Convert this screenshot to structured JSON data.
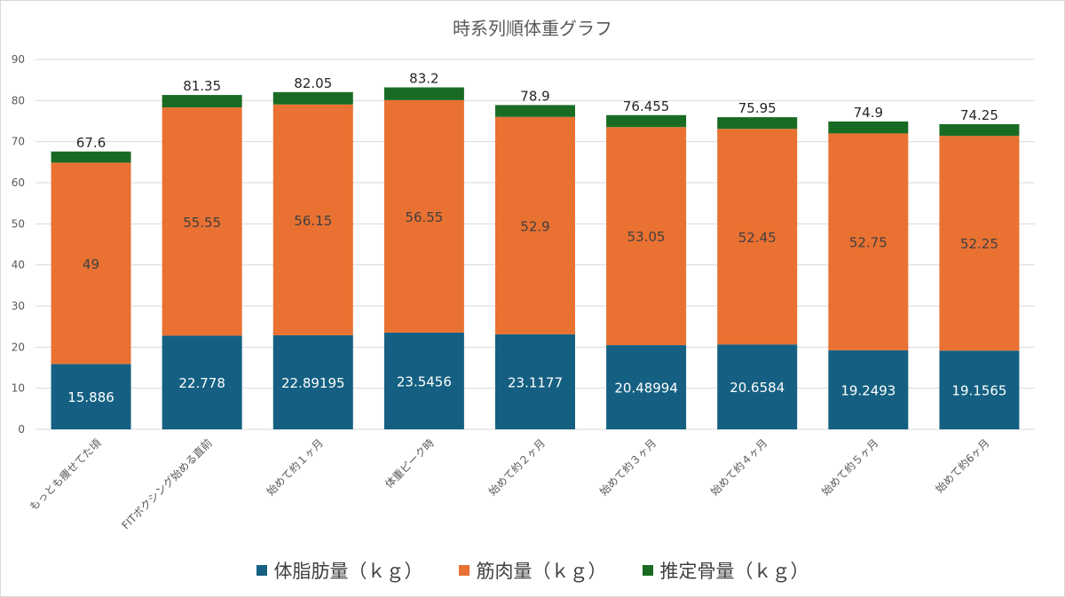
{
  "chart_data": {
    "type": "bar",
    "stacked": true,
    "title": "時系列順体重グラフ",
    "xlabel": "",
    "ylabel": "",
    "ylim": [
      0,
      90
    ],
    "yticks": [
      0,
      10,
      20,
      30,
      40,
      50,
      60,
      70,
      80,
      90
    ],
    "grid": true,
    "legend_position": "bottom",
    "categories": [
      "もっとも痩せてた頃",
      "FITボクシング始める直前",
      "始めて約１ヶ月",
      "体重ピーク時",
      "始めて約２ヶ月",
      "始めて約３ヶ月",
      "始めて約４ヶ月",
      "始めて約５ヶ月",
      "始めて約6ヶ月"
    ],
    "series": [
      {
        "name": "体脂肪量（ｋｇ）",
        "color": "#156082",
        "values": [
          15.886,
          22.778,
          22.89195,
          23.5456,
          23.1177,
          20.48994,
          20.6584,
          19.2493,
          19.1565
        ],
        "labels": [
          "15.886",
          "22.778",
          "22.89195",
          "23.5456",
          "23.1177",
          "20.48994",
          "20.6584",
          "19.2493",
          "19.1565"
        ]
      },
      {
        "name": "筋肉量（ｋｇ）",
        "color": "#E97132",
        "values": [
          49,
          55.55,
          56.15,
          56.55,
          52.9,
          53.05,
          52.45,
          52.75,
          52.25
        ],
        "labels": [
          "49",
          "55.55",
          "56.15",
          "56.55",
          "52.9",
          "53.05",
          "52.45",
          "52.75",
          "52.25"
        ]
      },
      {
        "name": "推定骨量（ｋｇ）",
        "color": "#196B24",
        "values": [
          2.714,
          3.022,
          3.00805,
          3.1044,
          2.8823,
          2.91506,
          2.8416,
          2.9007,
          2.8435
        ]
      }
    ],
    "totals": [
      "67.6",
      "81.35",
      "82.05",
      "83.2",
      "78.9",
      "76.455",
      "75.95",
      "74.9",
      "74.25"
    ]
  }
}
